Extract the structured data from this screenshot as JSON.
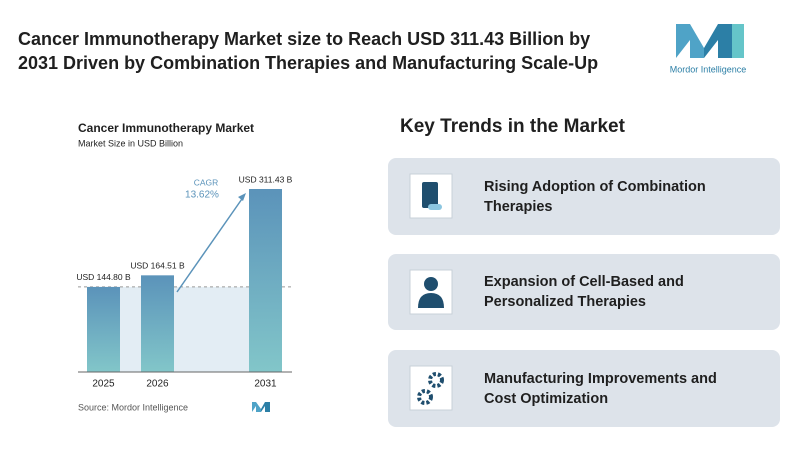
{
  "header": {
    "title_lines": [
      "Cancer Immunotherapy Market size to Reach USD 311.43 Billion by",
      "2031 Driven by Combination Therapies and Manufacturing Scale-Up"
    ],
    "logo_text": "Mordor Intelligence"
  },
  "chart_data": {
    "type": "bar",
    "title": "Cancer Immunotherapy Market",
    "subtitle": "Market Size in USD Billion",
    "categories": [
      "2025",
      "2026",
      "2031"
    ],
    "values": [
      144.8,
      164.51,
      311.43
    ],
    "value_labels": [
      "USD 144.80 B",
      "USD 164.51 B",
      "USD 311.43 B"
    ],
    "color": "#5b93ba",
    "annotation": [
      "CAGR",
      "13.62%"
    ],
    "source": "Source: Mordor Intelligence"
  },
  "trends": {
    "title": "Key Trends in the Market",
    "items": [
      {
        "lines": [
          "Rising Adoption of Combination",
          "Therapies"
        ]
      },
      {
        "lines": [
          "Expansion of Cell-Based and",
          "Personalized Therapies"
        ]
      },
      {
        "lines": [
          "Manufacturing Improvements and",
          "Cost Optimization"
        ]
      }
    ]
  }
}
